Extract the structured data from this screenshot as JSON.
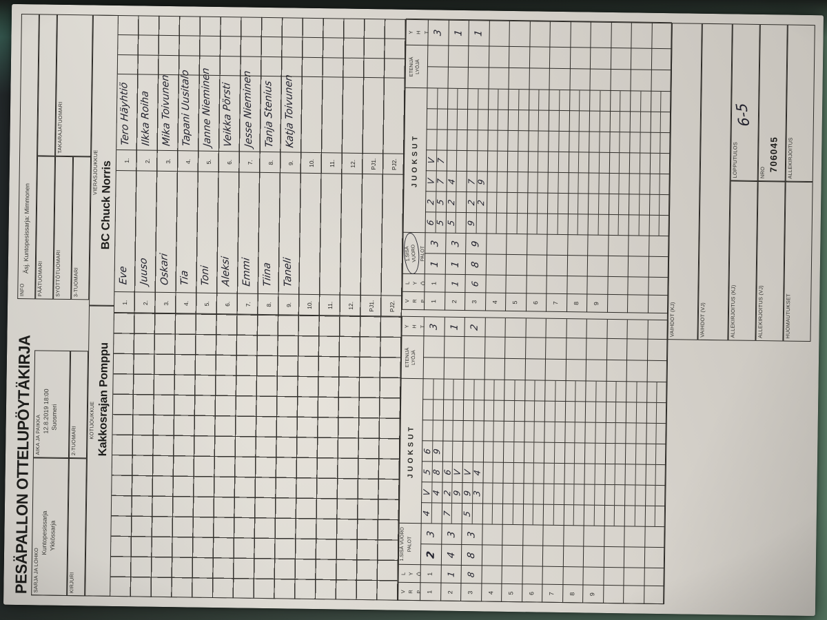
{
  "header": {
    "title": "PESÄPALLON OTTELUPÖYTÄKIRJA",
    "info_label": "INFO",
    "info_value": "Äsj. Kuntopesissarja: Mimmonen",
    "sarja_label": "SARJA JA LOHKO",
    "sarja_value1": "Kuntopesissarja",
    "sarja_value2": "Ykkössarja",
    "aika_label": "AIKA JA PAIKKA",
    "aika_value1": "12.8.2019 18:00",
    "aika_value2": "Suosmeri",
    "kirjuri_label": "KIRJURI",
    "tuomari2_label": "2-TUOMARI",
    "paatuomari_label": "PÄÄTUOMARI",
    "syottotuomari_label": "SYÖTTÖTUOMARI",
    "tuomari3_label": "3-TUOMARI",
    "takarajatuomari_label": "TAKARAJATUOMARI"
  },
  "teams": {
    "home_label": "KOTIJOUKKUE",
    "home_name": "Kakkosrajan Pomppu",
    "visitor_label": "VIERASJOUKKUE",
    "visitor_name": "BC Chuck Norris"
  },
  "lineup": {
    "row_labels": [
      "1.",
      "2.",
      "3.",
      "4.",
      "5.",
      "6.",
      "7.",
      "8.",
      "9.",
      "10.",
      "11.",
      "12.",
      "PJ1.",
      "PJ2."
    ],
    "home_players": [
      "Eve",
      "Juuso",
      "Oskari",
      "Tia",
      "Toni",
      "Aleksi",
      "Emmi",
      "Tiina",
      "Taneli",
      "",
      "",
      "",
      "",
      ""
    ],
    "visitor_players": [
      "Tero Häyhtiö",
      "Ilkka Roiha",
      "Mika Toivunen",
      "Tapani Uusitalo",
      "Janne Nieminen",
      "Veikka Pörsti",
      "Jesse Nieminen",
      "Tanja Stenius",
      "Katja Toivunen",
      "",
      "",
      "",
      "",
      ""
    ]
  },
  "score_table": {
    "col_vrp": "VRP",
    "col_lyo": "LYÖ",
    "col_sisa_line1": "1.SISÄ",
    "col_sisa_line2": "VUORO",
    "col_palot": "PALOT",
    "col_juoksut": "JUOKSUT",
    "col_etenija": "ETENIJÄ",
    "col_lyoja": "LYÖJÄ",
    "col_yht": "YHT",
    "row_numbers": [
      "1",
      "2",
      "3",
      "4",
      "5",
      "6",
      "7",
      "8",
      "9",
      "",
      "",
      ""
    ],
    "home_rows": [
      {
        "lyo": "1",
        "lyo_printed": true,
        "palot": [
          "2",
          "3"
        ],
        "palot_bold_first": true,
        "top": [
          "4",
          "V",
          "5",
          "6"
        ],
        "bottom": [
          "",
          "4",
          "8",
          "9"
        ],
        "yht": "3"
      },
      {
        "lyo": "1",
        "palot": [
          "4",
          "3"
        ],
        "top": [
          "7",
          "2",
          "6",
          ""
        ],
        "bottom": [
          "",
          "9",
          "V",
          ""
        ],
        "yht": "1"
      },
      {
        "lyo": "8",
        "palot": [
          "8",
          "3"
        ],
        "top": [
          "5",
          "9",
          "V",
          ""
        ],
        "bottom": [
          "",
          "3",
          "4",
          ""
        ],
        "yht": "2"
      }
    ],
    "visitor_rows": [
      {
        "lyo": "1",
        "lyo_printed": true,
        "palot": [
          "1",
          "3"
        ],
        "top": [
          "6",
          "2",
          "V",
          "V"
        ],
        "bottom": [
          "5",
          "5",
          "7",
          "7"
        ],
        "yht": "3"
      },
      {
        "lyo": "1",
        "palot": [
          "1",
          "3"
        ],
        "top": [
          "5",
          "2",
          "4",
          ""
        ],
        "bottom": [
          "",
          "",
          "",
          ""
        ],
        "yht": "1"
      },
      {
        "lyo": "6",
        "palot": [
          "8",
          "9"
        ],
        "top": [
          "9",
          "2",
          "7",
          ""
        ],
        "bottom": [
          "",
          "2",
          "9",
          ""
        ],
        "yht": "1"
      }
    ],
    "visitor_sisa_circled": true
  },
  "footer": {
    "vaihdot_kj_label": "VAIHDOT (KJ)",
    "vaihdot_vj_label": "VAIHDOT (VJ)",
    "allekirjoitus_kj_label": "ALLEKIRJOITUS (KJ)",
    "allekirjoitus_vj_label": "ALLEKIRJOITUS (VJ)",
    "huomautukset_label": "HUOMAUTUKSET",
    "lopputulos_label": "LOPPUTULOS",
    "lopputulos_value": "6-5",
    "nro_label": "NRO",
    "nro_value": "706045",
    "allekirjoitus_label": "ALLEKIRJOITUS"
  }
}
